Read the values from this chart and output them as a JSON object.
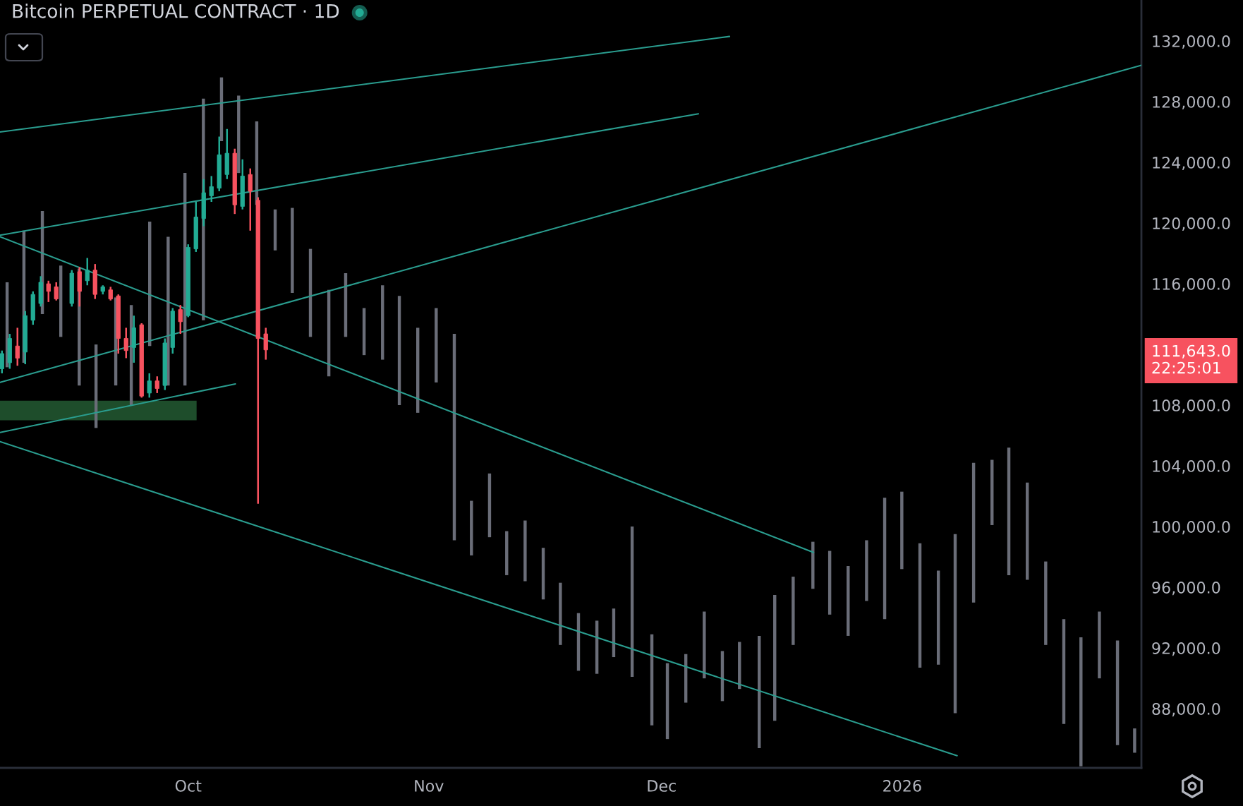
{
  "chart_data": {
    "type": "candlestick",
    "title": "Bitcoin PERPETUAL CONTRACT · 1D",
    "xlim": [
      "2025-09-06T18:00",
      "2026-01-31T20:00"
    ],
    "xticks": [
      {
        "value": "2025-10-01",
        "label": "Oct"
      },
      {
        "value": "2025-11-01",
        "label": "Nov"
      },
      {
        "value": "2025-12-01",
        "label": "Dec"
      },
      {
        "value": "2026-01-01",
        "label": "2026"
      }
    ],
    "ylim": [
      84100,
      134700
    ],
    "yticks": [
      {
        "value": 88000,
        "label": "88,000.0"
      },
      {
        "value": 92000,
        "label": "92,000.0"
      },
      {
        "value": 96000,
        "label": "96,000.0"
      },
      {
        "value": 100000,
        "label": "100,000.0"
      },
      {
        "value": 104000,
        "label": "104,000.0"
      },
      {
        "value": 108000,
        "label": "108,000.0"
      },
      {
        "value": 116000,
        "label": "116,000.0"
      },
      {
        "value": 120000,
        "label": "120,000.0"
      },
      {
        "value": 124000,
        "label": "124,000.0"
      },
      {
        "value": 128000,
        "label": "128,000.0"
      },
      {
        "value": 132000,
        "label": "132,000.0"
      }
    ],
    "annotations": [
      "111,643.0\n22:25:01"
    ],
    "series": [
      {
        "type": "line",
        "x": [
          "2025-09-06T18:00",
          "2025-10-02T02:00"
        ],
        "values": [
          null,
          null
        ],
        "lower": [
          107000,
          107000
        ],
        "upper": [
          108300,
          108300
        ],
        "color": "#1e4d2b"
      },
      {
        "type": "bar",
        "color": "#6a6d78",
        "x": [
          "2025-09-07T16:00",
          "2025-09-09T20:00",
          "2025-09-12T05:00",
          "2025-09-14T14:00",
          "2025-09-16T23:00",
          "2025-09-19T03:00",
          "2025-09-21T16:00",
          "2025-09-23T16:00",
          "2025-09-26T01:00",
          "2025-09-28T10:00",
          "2025-09-30T14:00",
          "2025-10-02T23:00",
          "2025-10-05T07:00",
          "2025-10-07T12:00",
          "2025-10-09T20:00",
          "2025-10-12T05:00",
          "2025-10-14T10:00",
          "2025-10-16T18:00",
          "2025-10-19T03:00",
          "2025-10-21T07:00",
          "2025-10-23T16:00",
          "2025-10-26T01:00",
          "2025-10-28T05:00",
          "2025-10-30T14:00",
          "2025-11-01T23:00",
          "2025-11-04T07:00",
          "2025-11-06T12:00",
          "2025-11-08T20:00",
          "2025-11-11T01:00",
          "2025-11-13T10:00",
          "2025-11-15T18:00",
          "2025-11-17T23:00",
          "2025-11-20T07:00",
          "2025-11-22T16:00",
          "2025-11-24T20:00",
          "2025-11-27T05:00",
          "2025-11-29T18:00",
          "2025-12-01T18:00",
          "2025-12-04T03:00",
          "2025-12-06T12:00",
          "2025-12-08T20:00",
          "2025-12-11T01:00",
          "2025-12-13T14:00",
          "2025-12-15T14:00",
          "2025-12-17T23:00",
          "2025-12-20T12:00",
          "2025-12-22T16:00",
          "2025-12-25T01:00",
          "2025-12-27T10:00",
          "2025-12-29T18:00",
          "2025-12-31T23:00",
          "2026-01-03T07:00",
          "2026-01-05T16:00",
          "2026-01-07T20:00",
          "2026-01-10T05:00",
          "2026-01-12T14:00",
          "2026-01-14T18:00",
          "2026-01-17T03:00",
          "2026-01-19T12:00",
          "2026-01-21T20:00",
          "2026-01-24T01:00",
          "2026-01-26T10:00",
          "2026-01-28T18:00",
          "2026-01-30T23:00"
        ],
        "base": [
          110500,
          110800,
          114000,
          112500,
          109300,
          106500,
          109300,
          108000,
          111900,
          109300,
          109300,
          113600,
          125400,
          123300,
          121200,
          118200,
          115400,
          112500,
          109900,
          112500,
          111300,
          111000,
          108000,
          107500,
          109500,
          99100,
          98100,
          99300,
          96800,
          96400,
          95200,
          92200,
          90500,
          90300,
          91400,
          90100,
          86900,
          86000,
          88400,
          90000,
          88500,
          89300,
          85400,
          87200,
          92200,
          95900,
          94200,
          92800,
          95100,
          93900,
          97200,
          90700,
          90900,
          87700,
          95000,
          100100,
          96800,
          96500,
          92200,
          87000,
          84200,
          90000,
          85600,
          85100
        ],
        "values": [
          5600,
          8700,
          6800,
          4700,
          7700,
          5500,
          5800,
          6600,
          8200,
          9800,
          14000,
          14600,
          4200,
          5100,
          5500,
          2700,
          5600,
          5800,
          5700,
          4200,
          3100,
          4900,
          7200,
          5600,
          4900,
          13600,
          3600,
          4200,
          2900,
          4000,
          3400,
          4100,
          3800,
          3500,
          3200,
          9900,
          6000,
          5000,
          3200,
          4400,
          3300,
          3100,
          7400,
          8300,
          4500,
          3100,
          4200,
          4600,
          4000,
          8000,
          5100,
          8200,
          6200,
          11800,
          9200,
          4300,
          8400,
          6400,
          5500,
          6900,
          8500,
          4400,
          6900,
          1600
        ]
      },
      {
        "type": "line",
        "color": "#2a9d8f",
        "x": [
          "2025-09-06T18:00",
          "2025-12-09T18:00"
        ],
        "values": [
          126000,
          132300
        ]
      },
      {
        "type": "line",
        "color": "#2a9d8f",
        "x": [
          "2025-09-06T18:00",
          "2025-12-05T18:00"
        ],
        "values": [
          119200,
          127200
        ]
      },
      {
        "type": "line",
        "color": "#2a9d8f",
        "x": [
          "2025-09-06T18:00",
          "2026-01-31T20:00"
        ],
        "values": [
          109500,
          130400
        ]
      },
      {
        "type": "line",
        "color": "#2a9d8f",
        "x": [
          "2025-09-06T18:00",
          "2025-12-20T14:00"
        ],
        "values": [
          119100,
          98300
        ]
      },
      {
        "type": "line",
        "color": "#2a9d8f",
        "x": [
          "2025-09-06T18:00",
          "2026-01-08T02:00"
        ],
        "values": [
          105600,
          84900
        ]
      },
      {
        "type": "line",
        "color": "#2a9d8f",
        "x": [
          "2025-09-06T18:00",
          "2025-10-07T02:00"
        ],
        "values": [
          106200,
          109400
        ]
      },
      {
        "x": [
          "2025-09-07",
          "2025-09-08",
          "2025-09-09",
          "2025-09-10",
          "2025-09-11",
          "2025-09-12",
          "2025-09-13",
          "2025-09-14",
          "2025-09-16",
          "2025-09-17",
          "2025-09-18",
          "2025-09-19",
          "2025-09-20",
          "2025-09-21",
          "2025-09-22",
          "2025-09-23",
          "2025-09-24",
          "2025-09-25",
          "2025-09-26",
          "2025-09-27",
          "2025-09-28",
          "2025-09-29",
          "2025-09-30",
          "2025-10-01",
          "2025-10-02",
          "2025-10-03",
          "2025-10-04",
          "2025-10-05",
          "2025-10-06",
          "2025-10-07",
          "2025-10-08",
          "2025-10-09",
          "2025-10-10",
          "2025-10-11"
        ],
        "ohlc": [
          [
            110400,
            111600,
            110100,
            111400
          ],
          [
            110800,
            112700,
            110400,
            112400
          ],
          [
            111900,
            113100,
            110600,
            111100
          ],
          [
            111500,
            114200,
            110700,
            113900
          ],
          [
            113600,
            115500,
            113300,
            115300
          ],
          [
            114700,
            116500,
            114500,
            116100
          ],
          [
            116000,
            116200,
            114800,
            115500
          ],
          [
            115800,
            116100,
            114900,
            115000
          ],
          [
            114700,
            116900,
            114500,
            116700
          ],
          [
            116800,
            117100,
            114500,
            115500
          ],
          [
            116200,
            117700,
            115900,
            116900
          ],
          [
            116900,
            117300,
            115000,
            115300
          ],
          [
            115500,
            115900,
            115300,
            115800
          ],
          [
            115600,
            115800,
            114900,
            115000
          ],
          [
            115200,
            115300,
            111400,
            112400
          ],
          [
            112400,
            113100,
            111100,
            111600
          ],
          [
            111800,
            113900,
            110800,
            113100
          ],
          [
            113300,
            113400,
            108500,
            108600
          ],
          [
            108800,
            110100,
            108500,
            109600
          ],
          [
            109600,
            109900,
            108800,
            109100
          ],
          [
            109300,
            112400,
            109000,
            112100
          ],
          [
            111800,
            114400,
            111400,
            114200
          ],
          [
            114300,
            114600,
            112700,
            113500
          ],
          [
            113900,
            118600,
            113800,
            118400
          ],
          [
            118300,
            121400,
            118100,
            120400
          ],
          [
            120300,
            122900,
            119800,
            122000
          ],
          [
            121800,
            123100,
            121400,
            122400
          ],
          [
            122300,
            125700,
            122100,
            124500
          ],
          [
            123200,
            126200,
            122900,
            124600
          ],
          [
            124600,
            124900,
            120600,
            121200
          ],
          [
            121100,
            124200,
            120900,
            123100
          ],
          [
            123200,
            123600,
            119500,
            122100
          ],
          [
            121500,
            121700,
            101500,
            112400
          ],
          [
            112700,
            113100,
            111000,
            111643
          ]
        ],
        "colors": [
          "#22ab94",
          "#22ab94",
          "#f7525f",
          "#22ab94",
          "#22ab94",
          "#22ab94",
          "#f7525f",
          "#f7525f",
          "#22ab94",
          "#f7525f",
          "#22ab94",
          "#f7525f",
          "#22ab94",
          "#f7525f",
          "#f7525f",
          "#f7525f",
          "#22ab94",
          "#f7525f",
          "#22ab94",
          "#f7525f",
          "#22ab94",
          "#22ab94",
          "#f7525f",
          "#22ab94",
          "#22ab94",
          "#22ab94",
          "#22ab94",
          "#22ab94",
          "#22ab94",
          "#f7525f",
          "#22ab94",
          "#f7525f",
          "#f7525f",
          "#f7525f"
        ]
      }
    ]
  }
}
